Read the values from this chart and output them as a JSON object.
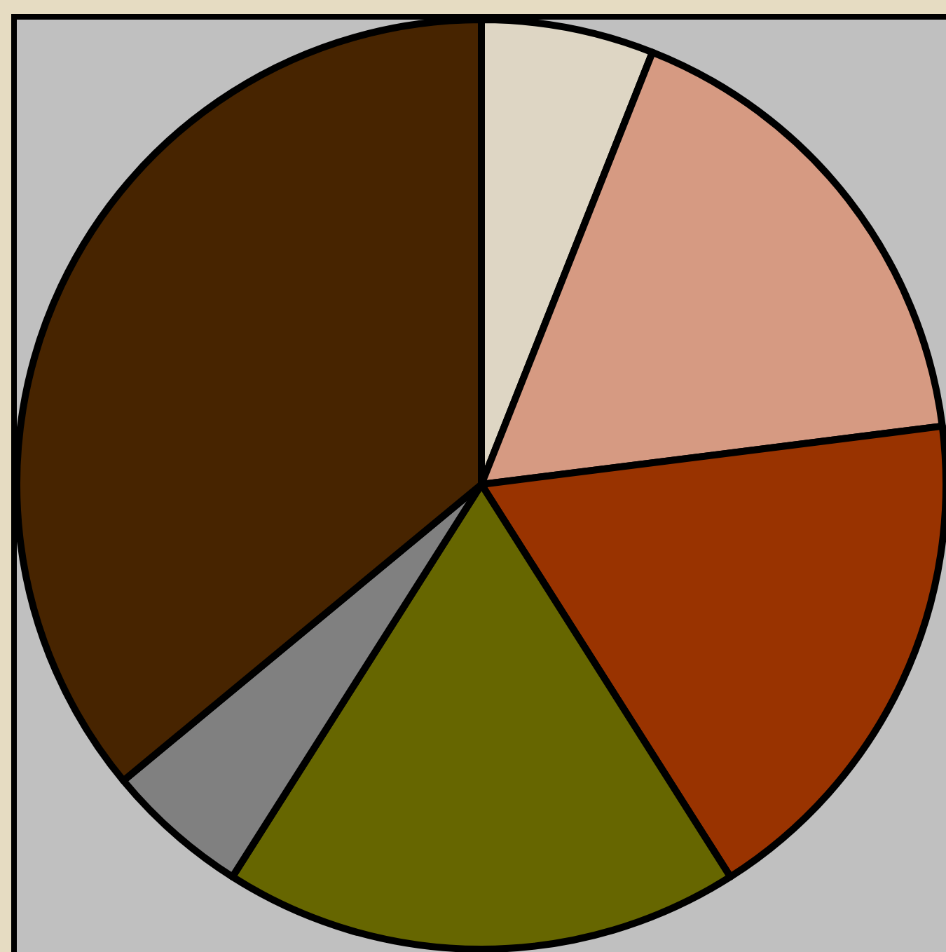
{
  "chart_data": {
    "type": "pie",
    "categories": [
      null,
      null,
      null,
      null,
      null,
      null
    ],
    "values": [
      6,
      17,
      18,
      18,
      5,
      36
    ],
    "colors": [
      "#ded6c4",
      "#d69a82",
      "#993300",
      "#666600",
      "#808080",
      "#472400"
    ],
    "legend": false
  }
}
